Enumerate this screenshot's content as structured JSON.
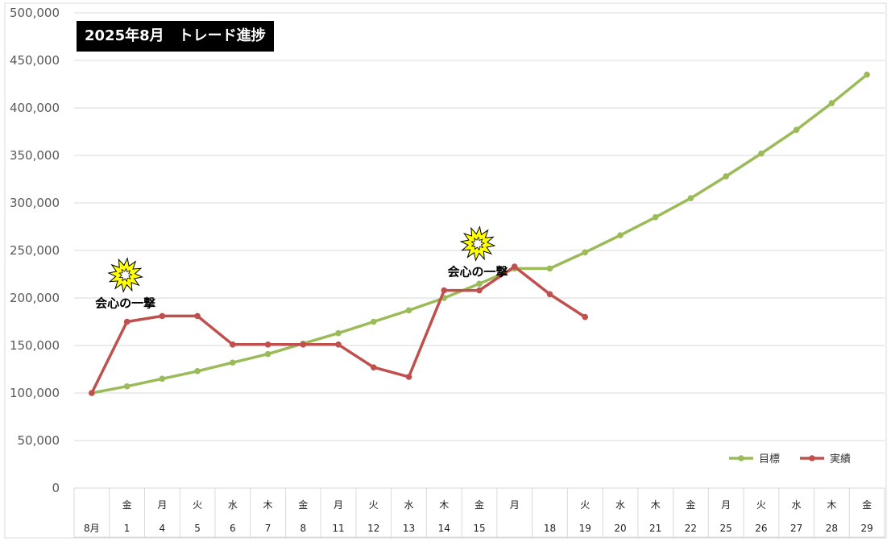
{
  "title": "2025年8月　トレード進捗",
  "colors": {
    "target": "#9BBB59",
    "actual": "#C0504D",
    "burst_fill": "#FFFF00",
    "grid": "#D9D9D9"
  },
  "annotations": [
    {
      "text": "会心の一撃",
      "near_index": 1,
      "icon": "burst-icon"
    },
    {
      "text": "会心の一撃",
      "near_index": 11,
      "icon": "burst-icon"
    }
  ],
  "chart_data": {
    "type": "line",
    "title": "2025年8月　トレード進捗",
    "y_ticks": [
      "0",
      "50,000",
      "100,000",
      "150,000",
      "200,000",
      "250,000",
      "300,000",
      "350,000",
      "400,000",
      "450,000",
      "500,000"
    ],
    "ylim": [
      0,
      500000
    ],
    "grid": true,
    "legend_position": "bottom-right",
    "x_days": [
      "",
      "金",
      "月",
      "火",
      "水",
      "木",
      "金",
      "月",
      "火",
      "水",
      "木",
      "金",
      "月",
      "",
      "火",
      "水",
      "木",
      "金",
      "月",
      "火",
      "水",
      "木",
      "金"
    ],
    "x_dates": [
      "8月",
      "1",
      "4",
      "5",
      "6",
      "7",
      "8",
      "11",
      "12",
      "13",
      "14",
      "15",
      "",
      "18",
      "19",
      "20",
      "21",
      "22",
      "25",
      "26",
      "27",
      "28",
      "29"
    ],
    "series": [
      {
        "name": "目標",
        "color": "#9BBB59",
        "values": [
          100000,
          107000,
          115000,
          123000,
          132000,
          141000,
          152000,
          163000,
          175000,
          187000,
          200000,
          215000,
          231000,
          231000,
          248000,
          266000,
          285000,
          305000,
          328000,
          352000,
          377000,
          405000,
          435000
        ]
      },
      {
        "name": "実績",
        "color": "#C0504D",
        "values": [
          100000,
          175000,
          181000,
          181000,
          151000,
          151000,
          151000,
          151000,
          127000,
          117000,
          208000,
          208000,
          233000,
          204000,
          180000,
          null,
          null,
          null,
          null,
          null,
          null,
          null,
          null
        ]
      }
    ]
  }
}
